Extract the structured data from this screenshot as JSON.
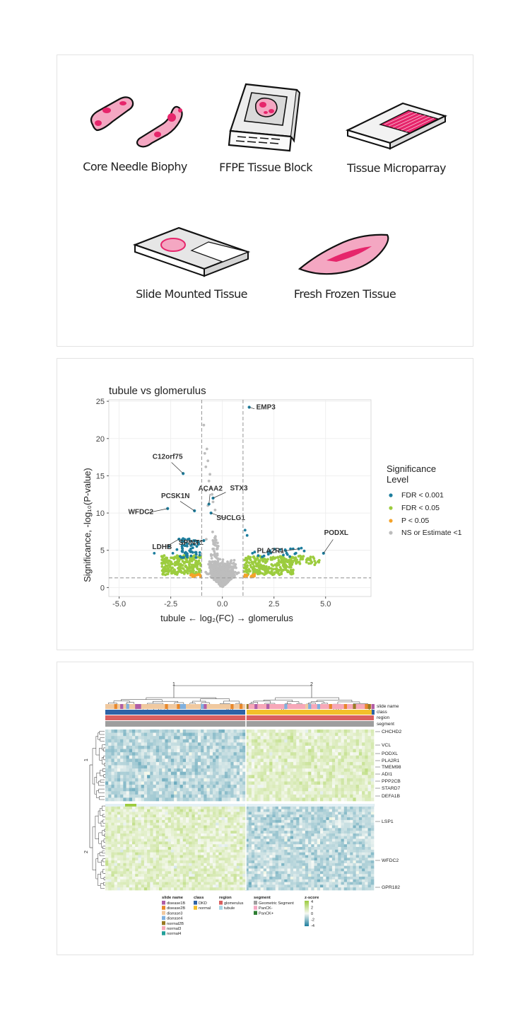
{
  "colors": {
    "pink": "#e6256b",
    "light_pink": "#f4a7c2",
    "fdr001": "#1d7e9e",
    "fdr05": "#9ccc3e",
    "p05": "#f4a32a",
    "ns": "#bdbdbd"
  },
  "tissue_types": [
    {
      "label": "Core Needle Biophy",
      "icon": "core-needle-icon"
    },
    {
      "label": "FFPE Tissue Block",
      "icon": "ffpe-block-icon"
    },
    {
      "label": "Tissue Microparray",
      "icon": "microarray-slide-icon"
    },
    {
      "label": "Slide Mounted Tissue",
      "icon": "slide-tissue-icon"
    },
    {
      "label": "Fresh Frozen Tissue",
      "icon": "frozen-tissue-icon"
    }
  ],
  "chart_data": [
    {
      "type": "scatter",
      "title": "tubule vs glomerulus",
      "xlabel": "tubule ← log₂(FC) → glomerulus",
      "ylabel": "Significance, -log₁₀(P-value)",
      "xlim": [
        -5.5,
        7.2
      ],
      "ylim": [
        -1.2,
        25.2
      ],
      "x_ticks": [
        -5,
        -2.5,
        0,
        2.5,
        5
      ],
      "x_tick_labels": [
        "-5.0",
        "-2.5",
        "0.0",
        "2.5",
        "5.0"
      ],
      "y_ticks": [
        0,
        5,
        10,
        15,
        20,
        25
      ],
      "reference_lines": {
        "x": [
          -1,
          1
        ],
        "y": [
          1.3
        ]
      },
      "grid": true,
      "legend": {
        "title_lines": [
          "Significance",
          "Level"
        ],
        "placement": "right",
        "entries": [
          {
            "label": "FDR < 0.001",
            "color": "#1d7e9e"
          },
          {
            "label": "FDR < 0.05",
            "color": "#9ccc3e"
          },
          {
            "label": "P < 0.05",
            "color": "#f4a32a"
          },
          {
            "label": "NS or Estimate <1",
            "color": "#bdbdbd"
          }
        ]
      },
      "labeled_points": [
        {
          "label": "EMP3",
          "x": 1.3,
          "y": 24.2
        },
        {
          "label": "C12orf75",
          "x": -1.9,
          "y": 15.3
        },
        {
          "label": "ACAA2",
          "x": -0.65,
          "y": 11.2
        },
        {
          "label": "STX3",
          "x": -0.45,
          "y": 12.0
        },
        {
          "label": "PCSK1N",
          "x": -1.35,
          "y": 10.3
        },
        {
          "label": "SUCLG1",
          "x": -0.55,
          "y": 10.0
        },
        {
          "label": "WFDC2",
          "x": -2.65,
          "y": 10.6
        },
        {
          "label": "LDHB",
          "x": -2.1,
          "y": 6.5
        },
        {
          "label": "SPINT1",
          "x": -0.9,
          "y": 6.3
        },
        {
          "label": "PODXL",
          "x": 4.9,
          "y": 4.6
        },
        {
          "label": "PLA2R1",
          "x": 3.7,
          "y": 5.2
        }
      ]
    },
    {
      "type": "heatmap",
      "column_clusters": [
        "1",
        "2"
      ],
      "annotation_tracks": [
        "slide name",
        "class",
        "region",
        "segment"
      ],
      "row_clusters": [
        "1",
        "2"
      ],
      "gene_labels": [
        "CHCHD2",
        "VCL",
        "PODXL",
        "PLA2R1",
        "TMEM98",
        "ADI1",
        "PPP2CB",
        "STARD7",
        "DEFA1B",
        "LSP1",
        "WFDC2",
        "GPR182"
      ],
      "legends": [
        {
          "title": "slide name",
          "entries": [
            {
              "label": "disease1B",
              "color": "#b05ea6"
            },
            {
              "label": "disease2B",
              "color": "#e7872b"
            },
            {
              "label": "disease3",
              "color": "#f0c9a0"
            },
            {
              "label": "disease4",
              "color": "#7fb0de"
            },
            {
              "label": "normal2B",
              "color": "#9a7a23"
            },
            {
              "label": "normal3",
              "color": "#f7a8b8"
            },
            {
              "label": "normal4",
              "color": "#22a09a"
            }
          ]
        },
        {
          "title": "class",
          "entries": [
            {
              "label": "DKD",
              "color": "#2e63a6"
            },
            {
              "label": "normal",
              "color": "#f3bf2a"
            }
          ]
        },
        {
          "title": "region",
          "entries": [
            {
              "label": "glomerulus",
              "color": "#d95f5f"
            },
            {
              "label": "tubule",
              "color": "#a9d6e5"
            }
          ]
        },
        {
          "title": "segment",
          "entries": [
            {
              "label": "Geometric Segment",
              "color": "#9e9e9e"
            },
            {
              "label": "PanCK-",
              "color": "#f4a7c2"
            },
            {
              "label": "PanCK+",
              "color": "#2e7d32"
            }
          ]
        },
        {
          "title": "z-score",
          "ticks": [
            "4",
            "2",
            "0",
            "-2",
            "-4"
          ]
        }
      ]
    }
  ]
}
